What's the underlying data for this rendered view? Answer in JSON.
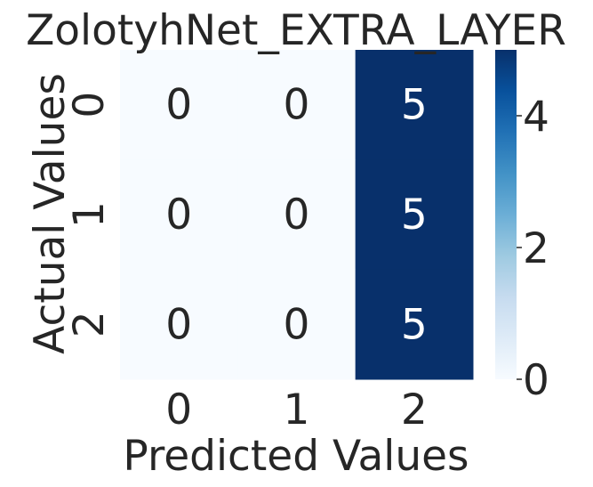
{
  "chart_data": {
    "type": "heatmap",
    "title": "ZolotyhNet_EXTRA_LAYER",
    "xlabel": "Predicted Values",
    "ylabel": "Actual Values",
    "x_categories": [
      "0",
      "1",
      "2"
    ],
    "y_categories": [
      "0",
      "1",
      "2"
    ],
    "values": [
      [
        0,
        0,
        5
      ],
      [
        0,
        0,
        5
      ],
      [
        0,
        0,
        5
      ]
    ],
    "annotations": [
      [
        "0",
        "0",
        "5"
      ],
      [
        "0",
        "0",
        "5"
      ],
      [
        "0",
        "0",
        "5"
      ]
    ],
    "colormap": "Blues",
    "color_low": "#f7fbff",
    "color_high": "#08306b",
    "colorbar": {
      "range": [
        0,
        5
      ],
      "ticks": [
        0,
        2,
        4
      ],
      "tick_labels": [
        "0",
        "2",
        "4"
      ]
    }
  }
}
